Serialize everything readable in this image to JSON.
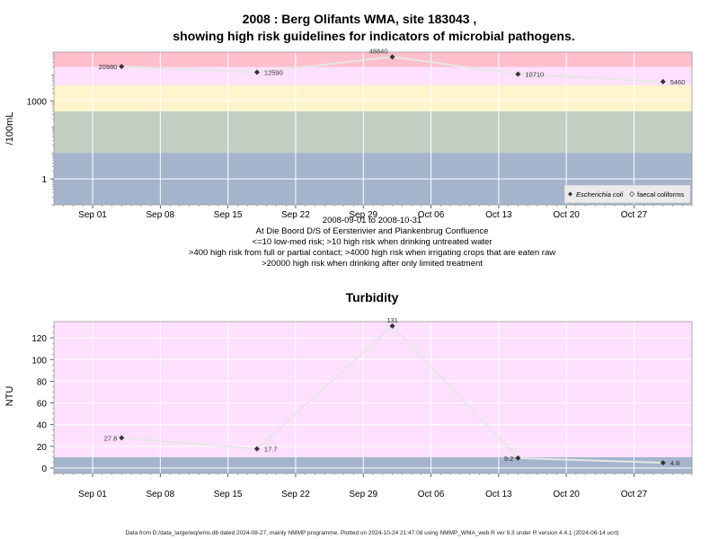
{
  "chart_data": [
    {
      "type": "line",
      "title_line1": "2008 : Berg Olifants WMA, site 183043 ,",
      "title_line2": "showing high risk guidelines for indicators of microbial pathogens.",
      "ylabel": "/100mL",
      "y_scale": "log10",
      "yticks": [
        {
          "v": 1,
          "label": "1"
        },
        {
          "v": 1000,
          "label": "1000"
        }
      ],
      "ylim": [
        0.1,
        75000
      ],
      "xlim": [
        "2008-08-28",
        "2008-11-02"
      ],
      "xticks": [
        {
          "date": "2008-09-01",
          "label": "Sep 01"
        },
        {
          "date": "2008-09-08",
          "label": "Sep 08"
        },
        {
          "date": "2008-09-15",
          "label": "Sep 15"
        },
        {
          "date": "2008-09-22",
          "label": "Sep 22"
        },
        {
          "date": "2008-09-29",
          "label": "Sep 29"
        },
        {
          "date": "2008-10-06",
          "label": "Oct 06"
        },
        {
          "date": "2008-10-13",
          "label": "Oct 13"
        },
        {
          "date": "2008-10-20",
          "label": "Oct 20"
        },
        {
          "date": "2008-10-27",
          "label": "Oct 27"
        }
      ],
      "bands": [
        {
          "from": 0.1,
          "to": 10,
          "color": "#a3b4cc"
        },
        {
          "from": 10,
          "to": 400,
          "color": "#c3cec3"
        },
        {
          "from": 400,
          "to": 4000,
          "color": "#fff4cc"
        },
        {
          "from": 4000,
          "to": 20000,
          "color": "#ffe0ff"
        },
        {
          "from": 20000,
          "to": 75000,
          "color": "#ffbfcc"
        }
      ],
      "series": [
        {
          "name": "Escherichia coli",
          "color": "#333333",
          "points": [
            {
              "x": "2008-09-04",
              "y": 20980,
              "label": "20980"
            },
            {
              "x": "2008-09-18",
              "y": 12590,
              "label": "12590"
            },
            {
              "x": "2008-10-02",
              "y": 48840,
              "label": "48840"
            },
            {
              "x": "2008-10-15",
              "y": 10710,
              "label": "10710"
            },
            {
              "x": "2008-10-30",
              "y": 5460,
              "label": "5460"
            }
          ]
        }
      ],
      "legend": {
        "placement": "bottom-right",
        "items": [
          "Escherichia coli",
          "faecal coliforms"
        ]
      },
      "caption": [
        "2008-09-01 to 2008-10-31",
        "At Die Boord D/S of Eersterivier and Plankenbrug Confluence",
        "<=10 low-med risk; >10 high risk when drinking untreated water",
        ">400 high risk from full or partial contact; >4000 high risk when irrigating crops that are eaten raw",
        ">20000 high risk when drinking after only limited treatment"
      ]
    },
    {
      "type": "line",
      "title": "Turbidity",
      "ylabel": "NTU",
      "ylim": [
        -5,
        135
      ],
      "yticks": [
        0,
        20,
        40,
        60,
        80,
        100,
        120
      ],
      "xlim": [
        "2008-08-28",
        "2008-11-02"
      ],
      "xticks": [
        {
          "date": "2008-09-01",
          "label": "Sep 01"
        },
        {
          "date": "2008-09-08",
          "label": "Sep 08"
        },
        {
          "date": "2008-09-15",
          "label": "Sep 15"
        },
        {
          "date": "2008-09-22",
          "label": "Sep 22"
        },
        {
          "date": "2008-09-29",
          "label": "Sep 29"
        },
        {
          "date": "2008-10-06",
          "label": "Oct 06"
        },
        {
          "date": "2008-10-13",
          "label": "Oct 13"
        },
        {
          "date": "2008-10-20",
          "label": "Oct 20"
        },
        {
          "date": "2008-10-27",
          "label": "Oct 27"
        }
      ],
      "bands": [
        {
          "from": -5,
          "to": 10,
          "color": "#a3b4cc"
        },
        {
          "from": 10,
          "to": 135,
          "color": "#ffe0ff"
        }
      ],
      "series": [
        {
          "name": "",
          "color": "#333333",
          "points": [
            {
              "x": "2008-09-04",
              "y": 27.8,
              "label": "27.8"
            },
            {
              "x": "2008-09-18",
              "y": 17.7,
              "label": "17.7"
            },
            {
              "x": "2008-10-02",
              "y": 131,
              "label": "131"
            },
            {
              "x": "2008-10-15",
              "y": 9.2,
              "label": "9.2"
            },
            {
              "x": "2008-10-30",
              "y": 4.8,
              "label": "4.8"
            }
          ]
        }
      ]
    }
  ],
  "footer": "Data from D:/data_large/wq/wms.db dated 2024-08-27, mainly NMMP programme. Plotted on 2024-10-24 21:47:08 using NMMP_WMA_web.R ver 9.3 under R version 4.4.1 (2024-06-14 ucrt)"
}
